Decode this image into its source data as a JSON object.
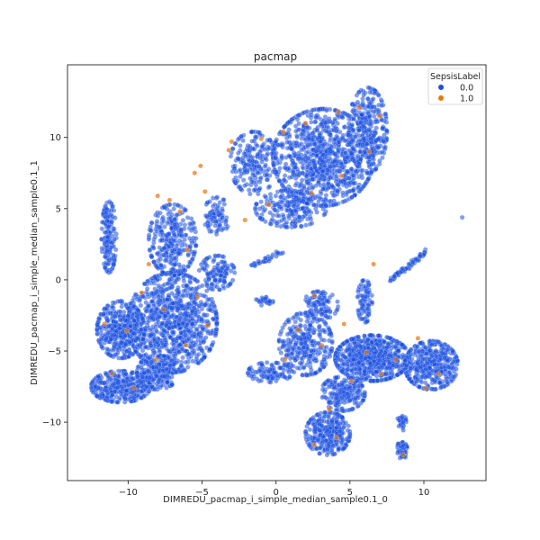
{
  "chart_data": {
    "type": "scatter",
    "title": "pacmap",
    "xlabel": "DIMREDU_pacmap_i_simple_median_sample0.1_0",
    "ylabel": "DIMREDU_pacmap_i_simple_median_sample0.1_1",
    "xlim": [
      -14.1,
      14.2
    ],
    "ylim": [
      -14.1,
      15.1
    ],
    "xticks": [
      -10,
      -5,
      0,
      5,
      10
    ],
    "yticks": [
      -10,
      -5,
      0,
      5,
      10
    ],
    "grid": false,
    "legend": {
      "title": "SepsisLabel",
      "position": "top-right",
      "entries": [
        {
          "label": "0.0",
          "color": "#1a4ee0"
        },
        {
          "label": "1.0",
          "color": "#e8750d"
        }
      ]
    },
    "series": [
      {
        "name": "0.0",
        "color": "#1a4ee0",
        "clusters": [
          {
            "cx": 3.2,
            "cy": 8.6,
            "rx": 3.4,
            "ry": 3.4,
            "n": 900
          },
          {
            "cx": 6.2,
            "cy": 10.5,
            "rx": 1.3,
            "ry": 3.0,
            "n": 300
          },
          {
            "cx": -1.5,
            "cy": 8.2,
            "rx": 1.6,
            "ry": 2.2,
            "n": 200
          },
          {
            "cx": 1.0,
            "cy": 5.0,
            "rx": 2.4,
            "ry": 1.3,
            "n": 200
          },
          {
            "cx": -7.0,
            "cy": -3.0,
            "rx": 3.0,
            "ry": 3.5,
            "n": 900
          },
          {
            "cx": -10.5,
            "cy": -3.5,
            "rx": 1.6,
            "ry": 2.0,
            "n": 400
          },
          {
            "cx": -10.5,
            "cy": -7.5,
            "rx": 2.0,
            "ry": 1.1,
            "n": 350
          },
          {
            "cx": -8.0,
            "cy": -6.5,
            "rx": 1.4,
            "ry": 1.2,
            "n": 200
          },
          {
            "cx": -7.0,
            "cy": 2.8,
            "rx": 1.6,
            "ry": 2.5,
            "n": 300
          },
          {
            "cx": -11.3,
            "cy": 3.0,
            "rx": 0.5,
            "ry": 2.5,
            "n": 150
          },
          {
            "cx": -4.0,
            "cy": 0.5,
            "rx": 1.2,
            "ry": 1.2,
            "n": 120
          },
          {
            "cx": -4.0,
            "cy": 4.5,
            "rx": 0.9,
            "ry": 1.3,
            "n": 80
          },
          {
            "cx": 6.5,
            "cy": -5.5,
            "rx": 2.5,
            "ry": 1.6,
            "n": 700
          },
          {
            "cx": 10.5,
            "cy": -6.0,
            "rx": 1.8,
            "ry": 1.7,
            "n": 400
          },
          {
            "cx": 2.0,
            "cy": -4.5,
            "rx": 1.8,
            "ry": 2.2,
            "n": 300
          },
          {
            "cx": 4.5,
            "cy": -8.0,
            "rx": 1.5,
            "ry": 1.2,
            "n": 200
          },
          {
            "cx": 3.5,
            "cy": -10.8,
            "rx": 1.5,
            "ry": 1.5,
            "n": 300
          },
          {
            "cx": 3.0,
            "cy": -1.8,
            "rx": 1.2,
            "ry": 1.0,
            "n": 100
          },
          {
            "cx": 6.0,
            "cy": -1.5,
            "rx": 0.5,
            "ry": 1.5,
            "n": 80
          },
          {
            "cx": -0.4,
            "cy": -6.5,
            "rx": 1.5,
            "ry": 0.7,
            "n": 100
          },
          {
            "cx": 8.5,
            "cy": -12.0,
            "rx": 0.4,
            "ry": 0.6,
            "n": 50
          },
          {
            "cx": 8.5,
            "cy": -10.0,
            "rx": 0.3,
            "ry": 0.6,
            "n": 30
          },
          {
            "cx": -0.8,
            "cy": -1.5,
            "rx": 0.6,
            "ry": 0.3,
            "n": 30
          },
          {
            "cx": 12.6,
            "cy": 4.4,
            "rx": 0.02,
            "ry": 0.02,
            "n": 1
          }
        ],
        "lines": [
          {
            "from": [
              7.8,
              0.0
            ],
            "to": [
              10.2,
              2.0
            ],
            "n": 60
          },
          {
            "from": [
              -2.0,
              0.8
            ],
            "to": [
              0.5,
              2.0
            ],
            "n": 30
          }
        ]
      },
      {
        "name": "1.0",
        "color": "#e8750d",
        "points": [
          [
            -5.5,
            7.5
          ],
          [
            -5.1,
            8.0
          ],
          [
            -4.8,
            6.2
          ],
          [
            -7.2,
            5.6
          ],
          [
            -6.5,
            4.8
          ],
          [
            -8.0,
            5.9
          ],
          [
            -3.0,
            9.7
          ],
          [
            -3.2,
            9.1
          ],
          [
            -1.0,
            9.9
          ],
          [
            0.5,
            10.4
          ],
          [
            2.0,
            11.0
          ],
          [
            4.2,
            11.8
          ],
          [
            5.6,
            12.1
          ],
          [
            7.0,
            11.5
          ],
          [
            6.3,
            9.0
          ],
          [
            4.4,
            7.3
          ],
          [
            2.4,
            6.1
          ],
          [
            -0.5,
            5.3
          ],
          [
            -2.1,
            4.2
          ],
          [
            -6.0,
            2.1
          ],
          [
            -8.6,
            1.1
          ],
          [
            -9.1,
            -0.9
          ],
          [
            -7.6,
            -2.1
          ],
          [
            -10.1,
            -3.6
          ],
          [
            -11.6,
            -3.1
          ],
          [
            -6.1,
            -4.6
          ],
          [
            -8.1,
            -5.6
          ],
          [
            -11.1,
            -6.6
          ],
          [
            -9.6,
            -7.6
          ],
          [
            -5.3,
            -1.2
          ],
          [
            -4.6,
            -3.2
          ],
          [
            1.5,
            -3.5
          ],
          [
            3.1,
            -4.6
          ],
          [
            4.6,
            -3.1
          ],
          [
            6.1,
            -5.1
          ],
          [
            8.1,
            -5.6
          ],
          [
            9.6,
            -4.1
          ],
          [
            11.0,
            -6.6
          ],
          [
            5.1,
            -7.1
          ],
          [
            3.6,
            -9.1
          ],
          [
            4.1,
            -11.1
          ],
          [
            2.6,
            -11.6
          ],
          [
            8.6,
            -12.3
          ],
          [
            2.6,
            -1.1
          ],
          [
            6.6,
            1.1
          ],
          [
            10.1,
            -7.6
          ],
          [
            7.1,
            -6.6
          ],
          [
            0.6,
            -5.6
          ]
        ]
      }
    ]
  }
}
